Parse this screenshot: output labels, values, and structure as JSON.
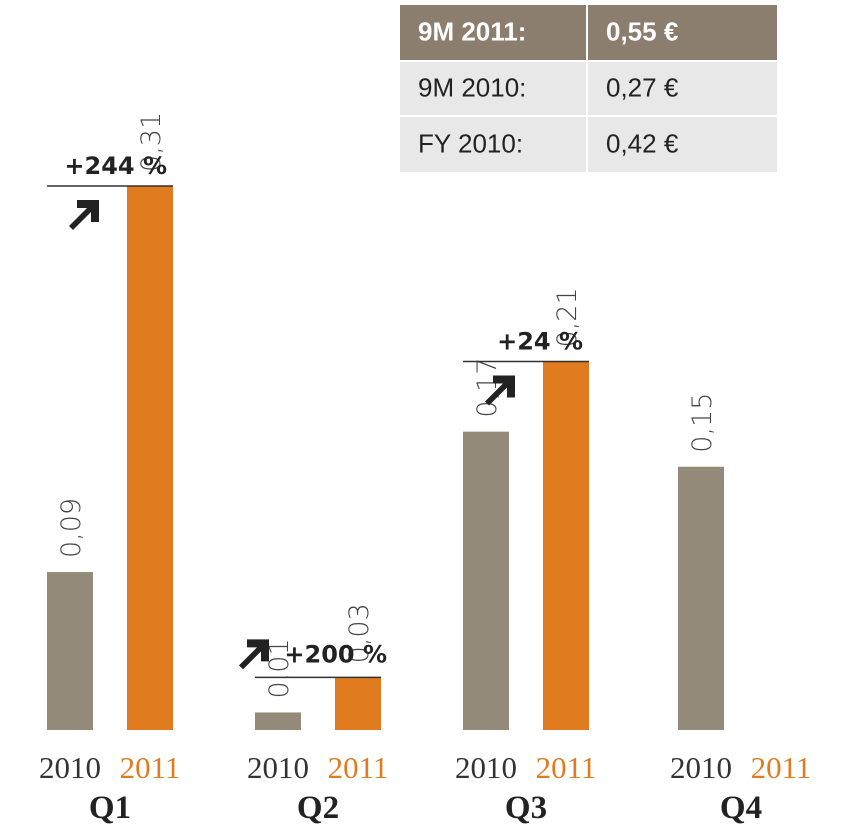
{
  "chart_data": {
    "type": "bar",
    "categories": [
      "Q1",
      "Q2",
      "Q3",
      "Q4"
    ],
    "series": [
      {
        "name": "2010",
        "color": "#938a7a",
        "values": [
          0.09,
          0.01,
          0.17,
          0.15
        ],
        "value_labels": [
          "0,09",
          "0,01",
          "0,17",
          "0,15"
        ]
      },
      {
        "name": "2011",
        "color": "#e07b1f",
        "values": [
          0.31,
          0.03,
          0.21,
          null
        ],
        "value_labels": [
          "0,31",
          "0,03",
          "0,21",
          null
        ]
      }
    ],
    "annotations": [
      "+244 %",
      "+200 %",
      "+24 %"
    ],
    "table": {
      "rows": [
        [
          "9M 2011:",
          "0,55 €"
        ],
        [
          "9M 2010:",
          "0,27 €"
        ],
        [
          "FY 2010:",
          "0,42 €"
        ]
      ]
    }
  }
}
